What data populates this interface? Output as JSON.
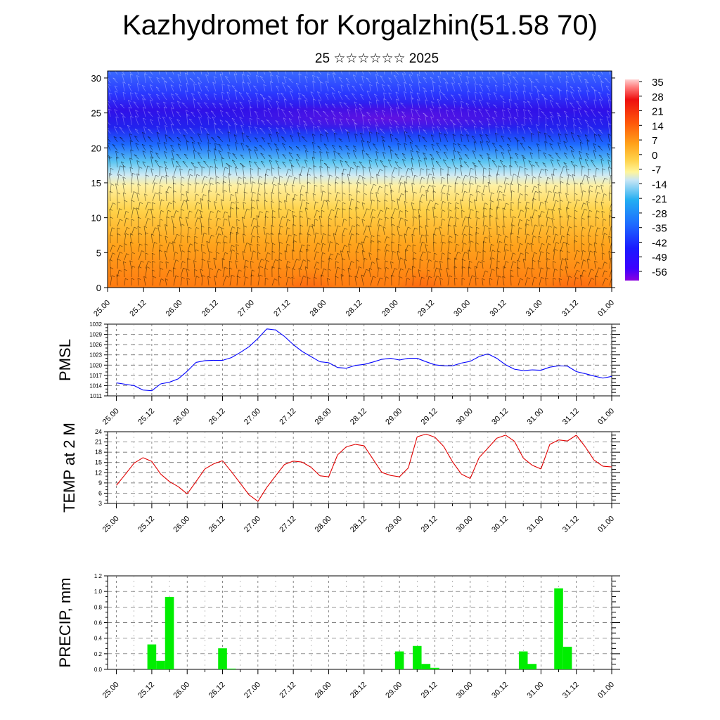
{
  "title": "Kazhydromet for Korgalzhin(51.58 70)",
  "subtitle": "25 ☆☆☆☆☆☆ 2025",
  "colors": {
    "pmsl_line": "#0000ff",
    "temp_line": "#e00000",
    "precip_bar": "#00ee00",
    "frame": "#000000"
  },
  "x_tick_labels": [
    "25.00",
    "25.12",
    "26.00",
    "26.12",
    "27.00",
    "27.12",
    "28.00",
    "28.12",
    "29.00",
    "29.12",
    "30.00",
    "30.12",
    "31.00",
    "31.12",
    "01.00"
  ],
  "chart_data": [
    {
      "type": "heatmap",
      "panel": "profile",
      "x_tick_labels": [
        "25.00",
        "25.12",
        "26.00",
        "26.12",
        "27.00",
        "27.12",
        "28.00",
        "28.12",
        "29.00",
        "29.12",
        "30.00",
        "30.12",
        "31.00",
        "31.12",
        "01.00"
      ],
      "ylim": [
        0,
        31
      ],
      "y_ticks": [
        0,
        5,
        10,
        15,
        20,
        25,
        30
      ],
      "colorbar_labels": [
        "35",
        "28",
        "21",
        "14",
        "7",
        "0",
        "-7",
        "-14",
        "-21",
        "-28",
        "-35",
        "-42",
        "-49",
        "-56"
      ],
      "colorbar_values": [
        35,
        28,
        21,
        14,
        7,
        0,
        -7,
        -14,
        -21,
        -28,
        -35,
        -42,
        -49,
        -56
      ],
      "wind_barbs": true
    },
    {
      "type": "line",
      "panel": "pmsl",
      "ylabel": "PMSL",
      "ylim": [
        1011,
        1032
      ],
      "y_ticks": [
        1011,
        1014,
        1017,
        1020,
        1023,
        1026,
        1029,
        1032
      ],
      "x_tick_labels": [
        "25.00",
        "25.12",
        "26.00",
        "26.12",
        "27.00",
        "27.12",
        "28.00",
        "28.12",
        "29.00",
        "29.12",
        "30.00",
        "30.12",
        "31.00",
        "31.12",
        "01.00"
      ],
      "series": [
        {
          "x": [
            0,
            3,
            6,
            9,
            12,
            15,
            18,
            21,
            24,
            27,
            30,
            33,
            36,
            39,
            42,
            45,
            48,
            51,
            54,
            57,
            60,
            63,
            66,
            69,
            72,
            75,
            78,
            81,
            84,
            87,
            90,
            93,
            96,
            99,
            102,
            105,
            108,
            111,
            114,
            117,
            120,
            123,
            126,
            129,
            132,
            135,
            138,
            141,
            144,
            147,
            150,
            153,
            156,
            159,
            162,
            165,
            168
          ],
          "values": [
            1014.8,
            1014.4,
            1014.0,
            1012.7,
            1012.5,
            1014.5,
            1015.0,
            1016.0,
            1018.2,
            1020.8,
            1021.3,
            1021.4,
            1021.4,
            1022.2,
            1023.7,
            1025.4,
            1027.8,
            1030.6,
            1030.3,
            1028.4,
            1026.0,
            1024.0,
            1022.5,
            1021.0,
            1020.7,
            1019.3,
            1019.1,
            1019.9,
            1020.2,
            1020.9,
            1021.7,
            1022.0,
            1021.5,
            1022.0,
            1022.0,
            1021.0,
            1020.1,
            1019.8,
            1019.8,
            1020.6,
            1021.1,
            1022.5,
            1023.3,
            1022.0,
            1020.1,
            1018.8,
            1018.4,
            1018.6,
            1018.5,
            1019.4,
            1019.8,
            1019.7,
            1018.1,
            1017.5,
            1016.8,
            1016.2,
            1016.7
          ]
        }
      ]
    },
    {
      "type": "line",
      "panel": "temp",
      "ylabel": "TEMP at 2 M",
      "ylim": [
        3,
        24
      ],
      "y_ticks": [
        3,
        6,
        9,
        12,
        15,
        18,
        21,
        24
      ],
      "x_tick_labels": [
        "25.00",
        "25.12",
        "26.00",
        "26.12",
        "27.00",
        "27.12",
        "28.00",
        "28.12",
        "29.00",
        "29.12",
        "30.00",
        "30.12",
        "31.00",
        "31.12",
        "01.00"
      ],
      "series": [
        {
          "x": [
            0,
            3,
            6,
            9,
            12,
            15,
            18,
            21,
            24,
            27,
            30,
            33,
            36,
            39,
            42,
            45,
            48,
            51,
            54,
            57,
            60,
            63,
            66,
            69,
            72,
            75,
            78,
            81,
            84,
            87,
            90,
            93,
            96,
            99,
            102,
            105,
            108,
            111,
            114,
            117,
            120,
            123,
            126,
            129,
            132,
            135,
            138,
            141,
            144,
            147,
            150,
            153,
            156,
            159,
            162,
            165,
            168
          ],
          "values": [
            8.3,
            11.5,
            14.8,
            16.4,
            15.3,
            11.6,
            9.4,
            7.9,
            5.8,
            9.4,
            13.1,
            14.6,
            15.5,
            12.3,
            8.9,
            5.5,
            3.6,
            7.7,
            11.1,
            14.4,
            15.4,
            15.1,
            13.6,
            11.1,
            10.8,
            17.2,
            19.6,
            20.3,
            19.9,
            16.0,
            12.1,
            11.2,
            10.8,
            13.4,
            22.5,
            23.3,
            22.4,
            19.7,
            15.2,
            11.6,
            10.3,
            16.4,
            19.2,
            22.1,
            23.0,
            21.2,
            16.3,
            14.2,
            13.1,
            20.3,
            21.6,
            21.3,
            23.0,
            19.6,
            15.7,
            13.9,
            13.7
          ]
        }
      ]
    },
    {
      "type": "bar",
      "panel": "precip",
      "ylabel": "PRECIP, mm",
      "ylim": [
        0,
        1.2
      ],
      "y_ticks": [
        "0.0",
        "0.2",
        "0.4",
        "0.6",
        "0.8",
        "1.0",
        "1.2"
      ],
      "x_tick_labels": [
        "25.00",
        "25.12",
        "26.00",
        "26.12",
        "27.00",
        "27.12",
        "28.00",
        "28.12",
        "29.00",
        "29.12",
        "30.00",
        "30.12",
        "31.00",
        "31.12",
        "01.00"
      ],
      "x": [
        12,
        15,
        18,
        36,
        39,
        96,
        102,
        105,
        108,
        138,
        141,
        150,
        153
      ],
      "values": [
        0.32,
        0.11,
        0.93,
        0.27,
        0.01,
        0.23,
        0.3,
        0.07,
        0.02,
        0.23,
        0.07,
        1.04,
        0.29
      ]
    }
  ]
}
